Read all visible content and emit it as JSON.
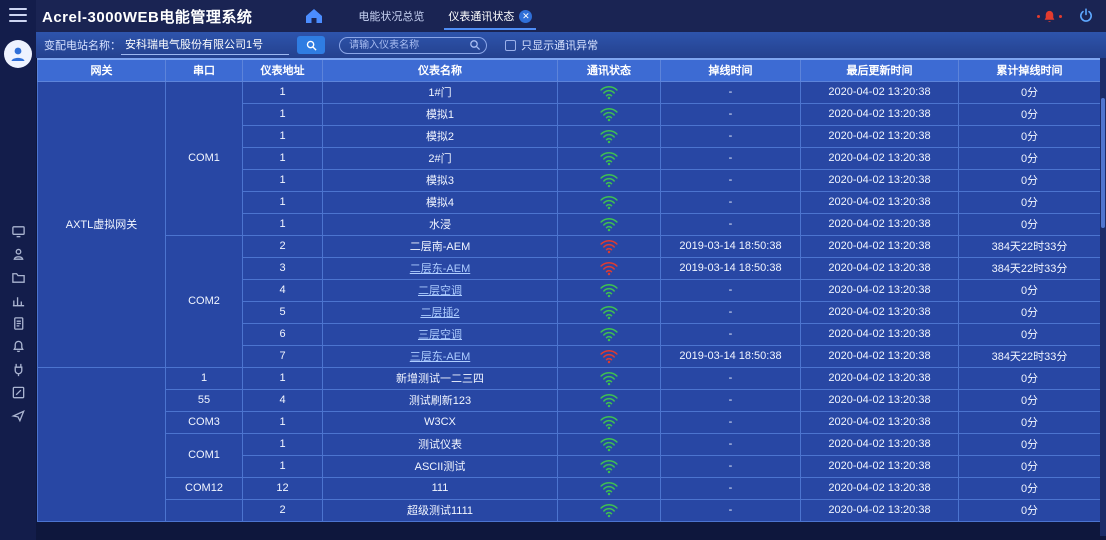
{
  "topbar": {
    "title": "Acrel-3000WEB电能管理系统",
    "tabs": [
      {
        "label": "电能状况总览",
        "active": false,
        "closable": false
      },
      {
        "label": "仪表通讯状态",
        "active": true,
        "closable": true,
        "close_glyph": "✕"
      }
    ]
  },
  "filter": {
    "station_label": "变配电站名称：",
    "station_value": "安科瑞电气股份有限公司1号",
    "search_placeholder": "请输入仪表名称",
    "checkbox_label": "只显示通讯异常",
    "checkbox_checked": false
  },
  "sidebar": {
    "icons": [
      "monitor",
      "person",
      "folder",
      "chart",
      "document",
      "bell",
      "plug",
      "edit",
      "share"
    ]
  },
  "colors": {
    "accent": "#4f8df5",
    "online": "#3ec24e",
    "offline": "#e23b2e",
    "header_bg": "#3d6bd3",
    "row_bg": "#2847a4"
  },
  "table": {
    "columns": [
      "网关",
      "串口",
      "仪表地址",
      "仪表名称",
      "通讯状态",
      "掉线时间",
      "最后更新时间",
      "累计掉线时间"
    ],
    "sections": [
      {
        "gateway": "AXTL虚拟网关",
        "groups": [
          {
            "port": "COM1",
            "rows": [
              {
                "addr": "1",
                "name": "1#门",
                "link": false,
                "status": "online",
                "offline_time": "-",
                "last_time": "2020-04-02 13:20:38",
                "duration": "0分"
              },
              {
                "addr": "1",
                "name": "模拟1",
                "link": false,
                "status": "online",
                "offline_time": "-",
                "last_time": "2020-04-02 13:20:38",
                "duration": "0分"
              },
              {
                "addr": "1",
                "name": "模拟2",
                "link": false,
                "status": "online",
                "offline_time": "-",
                "last_time": "2020-04-02 13:20:38",
                "duration": "0分"
              },
              {
                "addr": "1",
                "name": "2#门",
                "link": false,
                "status": "online",
                "offline_time": "-",
                "last_time": "2020-04-02 13:20:38",
                "duration": "0分"
              },
              {
                "addr": "1",
                "name": "模拟3",
                "link": false,
                "status": "online",
                "offline_time": "-",
                "last_time": "2020-04-02 13:20:38",
                "duration": "0分"
              },
              {
                "addr": "1",
                "name": "模拟4",
                "link": false,
                "status": "online",
                "offline_time": "-",
                "last_time": "2020-04-02 13:20:38",
                "duration": "0分"
              },
              {
                "addr": "1",
                "name": "水浸",
                "link": false,
                "status": "online",
                "offline_time": "-",
                "last_time": "2020-04-02 13:20:38",
                "duration": "0分"
              }
            ]
          },
          {
            "port": "COM2",
            "rows": [
              {
                "addr": "2",
                "name": "二层南-AEM",
                "link": false,
                "status": "offline",
                "offline_time": "2019-03-14 18:50:38",
                "last_time": "2020-04-02 13:20:38",
                "duration": "384天22时33分"
              },
              {
                "addr": "3",
                "name": "二层东-AEM",
                "link": true,
                "status": "offline",
                "offline_time": "2019-03-14 18:50:38",
                "last_time": "2020-04-02 13:20:38",
                "duration": "384天22时33分"
              },
              {
                "addr": "4",
                "name": "二层空调",
                "link": true,
                "status": "online",
                "offline_time": "-",
                "last_time": "2020-04-02 13:20:38",
                "duration": "0分"
              },
              {
                "addr": "5",
                "name": "二层插2",
                "link": true,
                "status": "online",
                "offline_time": "-",
                "last_time": "2020-04-02 13:20:38",
                "duration": "0分"
              },
              {
                "addr": "6",
                "name": "三层空调",
                "link": true,
                "status": "online",
                "offline_time": "-",
                "last_time": "2020-04-02 13:20:38",
                "duration": "0分"
              },
              {
                "addr": "7",
                "name": "三层东-AEM",
                "link": true,
                "status": "offline",
                "offline_time": "2019-03-14 18:50:38",
                "last_time": "2020-04-02 13:20:38",
                "duration": "384天22时33分"
              }
            ]
          }
        ]
      },
      {
        "gateway": "",
        "groups": [
          {
            "port": "1",
            "rows": [
              {
                "addr": "1",
                "name": "新增测试一二三四",
                "link": false,
                "status": "online",
                "offline_time": "-",
                "last_time": "2020-04-02 13:20:38",
                "duration": "0分"
              }
            ]
          },
          {
            "port": "55",
            "rows": [
              {
                "addr": "4",
                "name": "测试刷新123",
                "link": false,
                "status": "online",
                "offline_time": "-",
                "last_time": "2020-04-02 13:20:38",
                "duration": "0分"
              }
            ]
          },
          {
            "port": "COM3",
            "rows": [
              {
                "addr": "1",
                "name": "W3CX",
                "link": false,
                "status": "online",
                "offline_time": "-",
                "last_time": "2020-04-02 13:20:38",
                "duration": "0分"
              }
            ]
          },
          {
            "port": "COM1",
            "rows": [
              {
                "addr": "1",
                "name": "测试仪表",
                "link": false,
                "status": "online",
                "offline_time": "-",
                "last_time": "2020-04-02 13:20:38",
                "duration": "0分"
              },
              {
                "addr": "1",
                "name": "ASCII测试",
                "link": false,
                "status": "online",
                "offline_time": "-",
                "last_time": "2020-04-02 13:20:38",
                "duration": "0分"
              }
            ]
          },
          {
            "port": "COM12",
            "rows": [
              {
                "addr": "12",
                "name": "111",
                "link": false,
                "status": "online",
                "offline_time": "-",
                "last_time": "2020-04-02 13:20:38",
                "duration": "0分"
              }
            ]
          },
          {
            "port": "",
            "rows": [
              {
                "addr": "2",
                "name": "超级测试1111",
                "link": false,
                "status": "online",
                "offline_time": "-",
                "last_time": "2020-04-02 13:20:38",
                "duration": "0分"
              }
            ]
          }
        ]
      }
    ]
  }
}
